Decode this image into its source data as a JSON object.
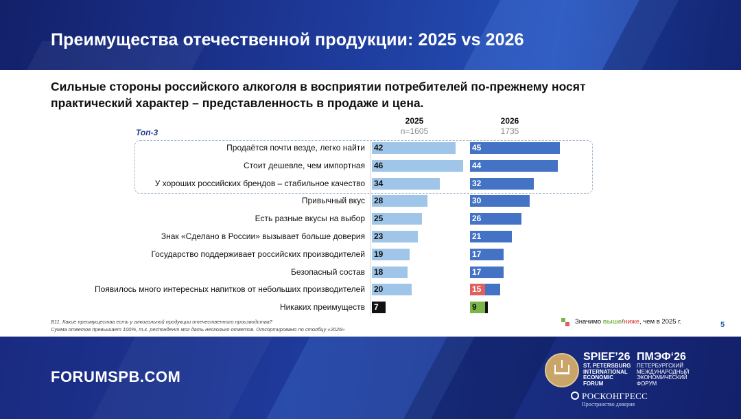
{
  "header": {
    "title": "Преимущества отечественной продукции: 2025 vs 2026"
  },
  "subtitle": "Сильные стороны российского алкоголя в восприятии потребителей по-прежнему носят практический характер – представленность в продаже и цена.",
  "chart_data": {
    "type": "bar",
    "group_label": "Топ-3",
    "categories": [
      "Продаётся почти везде, легко найти",
      "Стоит дешевле, чем импортная",
      "У хороших российских брендов – стабильное качество",
      "Привычный вкус",
      "Есть разные вкусы на выбор",
      "Знак «Сделано в России» вызывает больше доверия",
      "Государство поддерживает российских производителей",
      "Безопасный состав",
      "Появилось много интересных напитков от небольших производителей",
      "Никаких преимуществ"
    ],
    "highlighted_top": 3,
    "series": [
      {
        "name": "2025",
        "sample": "n=1605",
        "color": "#9fc5e8",
        "values": [
          42,
          46,
          34,
          28,
          25,
          23,
          19,
          18,
          20,
          7
        ]
      },
      {
        "name": "2026",
        "sample": "1735",
        "color": "#4472c4",
        "values": [
          45,
          44,
          32,
          30,
          26,
          21,
          17,
          17,
          15,
          9
        ]
      }
    ],
    "markers": {
      "2026": {
        "8": "lower",
        "9": "higher"
      }
    },
    "marker_colors": {
      "higher": "#7ab648",
      "lower": "#e06060"
    }
  },
  "footnote": {
    "line1": "B11. Какие преимущества есть у алкогольной продукции отечественного производства?",
    "line2": "Сумма ответов превышает 100%, т.к. респондент мог дать несколько ответов. Отсортировано по столбцу «2026»"
  },
  "legend": {
    "prefix": "Значимо ",
    "higher": "выше",
    "sep": "/",
    "lower": "ниже",
    "suffix": ", чем в 2025 г."
  },
  "page_number": "5",
  "footer": {
    "site": "FORUMSPB.COM",
    "spief_title": "SPIEF’26",
    "spief_sub": "ST. PETERSBURG INTERNATIONAL ECONOMIC FORUM",
    "pmef_title": "ПМЭФ‘26",
    "pmef_sub": "ПЕТЕРБУРГСКИЙ МЕЖДУНАРОДНЫЙ ЭКОНОМИЧЕСКИЙ ФОРУМ",
    "rc_title": "РОСКОНГРЕСС",
    "rc_sub": "Пространство доверия"
  }
}
